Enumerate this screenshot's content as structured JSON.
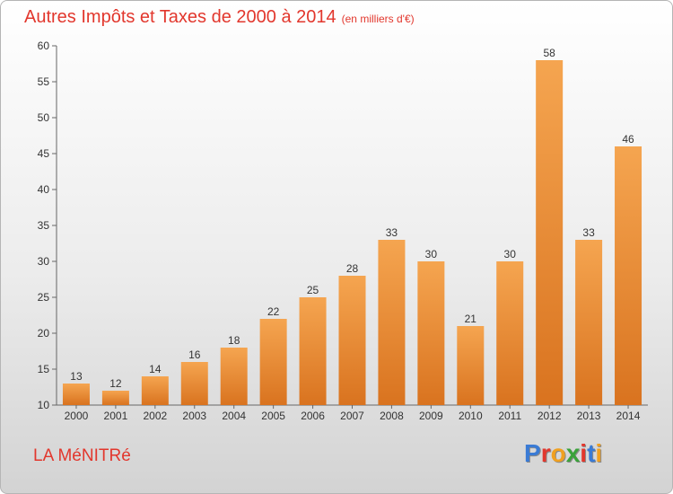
{
  "header": {
    "title": "Autres Impôts et Taxes de 2000 à 2014",
    "subtitle": "(en milliers d'€)"
  },
  "footer": {
    "commune": "LA MéNITRé",
    "logo": [
      "P",
      "r",
      "o",
      "x",
      "i",
      "t",
      "i"
    ]
  },
  "colors": {
    "title": "#e2372d",
    "bar_top": "#f5a550",
    "bar_bottom": "#d9731f",
    "logo": [
      "#3a7bd5",
      "#e2372d",
      "#f0a020",
      "#3aa23a",
      "#e2372d",
      "#3a7bd5",
      "#f0a020"
    ]
  },
  "chart_data": {
    "type": "bar",
    "title": "Autres Impôts et Taxes de 2000 à 2014",
    "subtitle": "(en milliers d'€)",
    "categories": [
      "2000",
      "2001",
      "2002",
      "2003",
      "2004",
      "2005",
      "2006",
      "2007",
      "2008",
      "2009",
      "2010",
      "2011",
      "2012",
      "2013",
      "2014"
    ],
    "values": [
      13,
      12,
      14,
      16,
      18,
      22,
      25,
      28,
      33,
      30,
      21,
      30,
      58,
      33,
      46
    ],
    "data_labels": [
      "13",
      "12",
      "14",
      "16",
      "18",
      "22",
      "25",
      "28",
      "33",
      "30",
      "21",
      "30",
      "58",
      "33",
      "46"
    ],
    "ylim": [
      10,
      60
    ],
    "yticks": [
      10,
      15,
      20,
      25,
      30,
      35,
      40,
      45,
      50,
      55,
      60
    ],
    "ytick_labels": [
      "10",
      "15",
      "20",
      "25",
      "30",
      "35",
      "40",
      "45",
      "50",
      "55",
      "60"
    ],
    "xlabel": "",
    "ylabel": "",
    "grid": false,
    "legend": "none"
  }
}
